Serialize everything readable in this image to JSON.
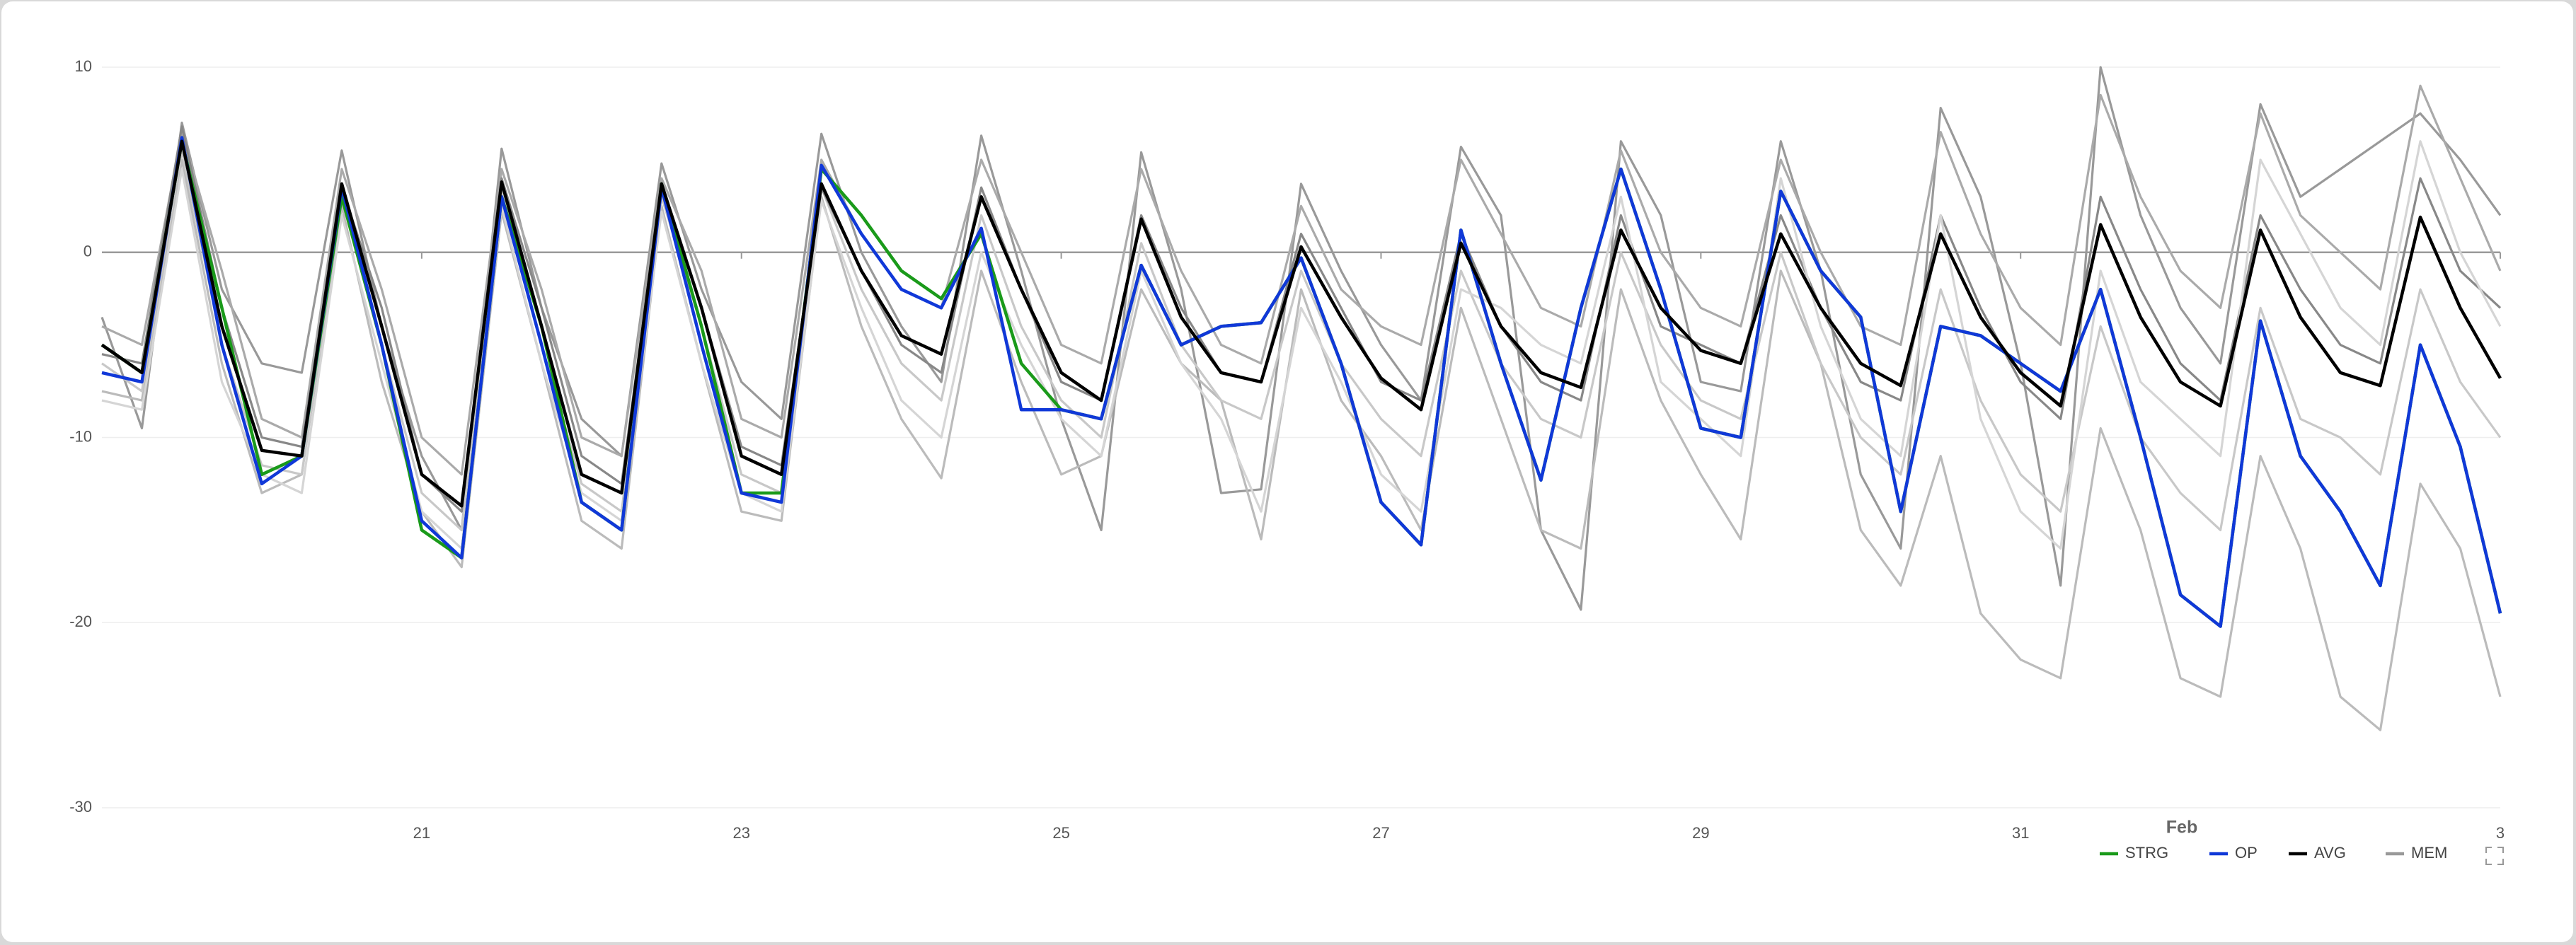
{
  "chart_data": {
    "type": "line",
    "x": [
      19,
      19.25,
      19.5,
      19.75,
      20,
      20.25,
      20.5,
      20.75,
      21,
      21.25,
      21.5,
      21.75,
      22,
      22.25,
      22.5,
      22.75,
      23,
      23.25,
      23.5,
      23.75,
      24,
      24.25,
      24.5,
      24.75,
      25,
      25.25,
      25.5,
      25.75,
      26,
      26.25,
      26.5,
      26.75,
      27,
      27.25,
      27.5,
      27.75,
      28,
      28.25,
      28.5,
      28.75,
      29,
      29.25,
      29.5,
      29.75,
      30,
      30.25,
      30.5,
      30.75,
      31,
      31.25,
      31.5,
      31.75,
      32,
      32.25,
      32.5,
      32.75,
      33,
      33.25,
      33.5,
      33.75,
      34
    ],
    "xlim": [
      19,
      34
    ],
    "xticks": [
      21,
      23,
      25,
      27,
      29,
      31,
      {
        "value": 34,
        "label": "3"
      }
    ],
    "x_annotation": "Feb",
    "ylim": [
      -30,
      10
    ],
    "yticks": [
      -30,
      -20,
      -10,
      0,
      10
    ],
    "grid": true,
    "legend": "bottom-right",
    "series": [
      {
        "name": "STRG",
        "color": "#1a9a1a",
        "values": [
          -5,
          -6.5,
          6,
          -3,
          -12,
          -11,
          3,
          -5,
          -15,
          -16.5,
          3,
          -4,
          -13.5,
          -15,
          3.7,
          -4,
          -13,
          -13,
          4.5,
          2,
          -1,
          -2.5,
          1,
          -6,
          -8.5,
          -9,
          -0.7,
          -5,
          -4,
          -3.8,
          -0.3,
          -6,
          -13.5,
          -15.8,
          1.2,
          -6,
          -12.3,
          -3,
          4.5,
          -2,
          -9.5,
          -10,
          3.3,
          -1,
          -3.5,
          -14,
          -4,
          -4.5,
          -6,
          -7.5,
          -2,
          -10,
          -18.5,
          -20.2,
          -3.7,
          -11,
          -14,
          -18,
          -5,
          -10.5,
          -19.5
        ]
      },
      {
        "name": "OP",
        "color": "#1038d8",
        "values": [
          -6.5,
          -7,
          6.2,
          -5,
          -12.5,
          -11,
          3.5,
          -5,
          -14.5,
          -16.5,
          3,
          -5,
          -13.5,
          -15,
          3.5,
          -5,
          -13,
          -13.5,
          4.7,
          1,
          -2,
          -3,
          1.3,
          -8.5,
          -8.5,
          -9,
          -0.7,
          -5,
          -4,
          -3.8,
          -0.3,
          -6,
          -13.5,
          -15.8,
          1.2,
          -6,
          -12.3,
          -3,
          4.5,
          -2,
          -9.5,
          -10,
          3.3,
          -1,
          -3.5,
          -14,
          -4,
          -4.5,
          -6,
          -7.5,
          -2,
          -10,
          -18.5,
          -20.2,
          -3.7,
          -11,
          -14,
          -18,
          -5,
          -10.5,
          -19.5
        ]
      },
      {
        "name": "AVG",
        "color": "#000000",
        "values": [
          -5,
          -6.5,
          6,
          -4,
          -10.7,
          -11,
          3.7,
          -4,
          -12,
          -13.7,
          3.8,
          -4,
          -12,
          -13,
          3.7,
          -3,
          -11,
          -12,
          3.7,
          -1,
          -4.5,
          -5.5,
          3,
          -2,
          -6.5,
          -8,
          1.8,
          -3.5,
          -6.5,
          -7,
          0.3,
          -3.5,
          -6.8,
          -8.5,
          0.5,
          -4,
          -6.5,
          -7.3,
          1.2,
          -3,
          -5.3,
          -6,
          1,
          -3,
          -6,
          -7.2,
          1,
          -3.5,
          -6.5,
          -8.3,
          1.5,
          -3.5,
          -7,
          -8.3,
          1.2,
          -3.5,
          -6.5,
          -7.2,
          1.9,
          -3,
          -6.8
        ]
      },
      {
        "name": "MEM",
        "color": "#999999",
        "members": [
          {
            "color": "#999999",
            "values": [
              -3.5,
              -9.5,
              7,
              -2,
              -6,
              -6.5,
              5.5,
              -4,
              -11,
              -15,
              5.6,
              -3,
              -9,
              -11,
              4.8,
              -2,
              -7,
              -9,
              6.4,
              0,
              -4,
              -7,
              6.3,
              -1,
              -9,
              -15,
              5.4,
              -2,
              -13,
              -12.8,
              3.7,
              -1,
              -5,
              -8,
              5.7,
              2,
              -15,
              -19.3,
              6,
              2,
              -7,
              -7.5,
              6,
              -1,
              -12,
              -16,
              7.8,
              3,
              -6,
              -18,
              10,
              2,
              -3,
              -6,
              8,
              3,
              4.5,
              6,
              7.5,
              5,
              2
            ]
          },
          {
            "color": "#bbbbbb",
            "values": [
              -7.5,
              -8,
              5,
              -6,
              -13,
              -12,
              2.5,
              -7,
              -14,
              -17,
              2.2,
              -6,
              -14.5,
              -16,
              2.5,
              -6,
              -14,
              -14.5,
              3,
              -4,
              -9,
              -12.2,
              -1,
              -7,
              -12,
              -11,
              -2,
              -6,
              -8,
              -15.5,
              -2,
              -8,
              -11,
              -15,
              -3,
              -9,
              -15,
              -16,
              -2,
              -8,
              -12,
              -15.5,
              -1,
              -6,
              -15,
              -18,
              -11,
              -19.5,
              -22,
              -23,
              -9.5,
              -15,
              -23,
              -24,
              -11,
              -16,
              -24,
              -25.8,
              -12.5,
              -16,
              -24
            ]
          },
          {
            "color": "#aaaaaa",
            "values": [
              -4,
              -5,
              6.5,
              -1,
              -9,
              -10,
              4.5,
              -2,
              -10,
              -12,
              4.5,
              -2,
              -10,
              -11,
              4,
              -1,
              -9,
              -10,
              5,
              1,
              -2,
              -3,
              5,
              0,
              -5,
              -6,
              4.5,
              -1,
              -5,
              -6,
              2.5,
              -2,
              -4,
              -5,
              5,
              1,
              -3,
              -4,
              5.5,
              0,
              -3,
              -4,
              5,
              0,
              -4,
              -5,
              6.5,
              1,
              -3,
              -5,
              8.5,
              3,
              -1,
              -3,
              7.5,
              2,
              0,
              -2,
              9,
              4,
              -1
            ]
          },
          {
            "color": "#c8c8c8",
            "values": [
              -6,
              -7.5,
              5.5,
              -5,
              -11.5,
              -12,
              3,
              -5,
              -13,
              -15,
              3.3,
              -5,
              -12.5,
              -14,
              3,
              -4,
              -12,
              -13,
              3.5,
              -2,
              -6,
              -8,
              2,
              -4,
              -8,
              -10,
              0.5,
              -5,
              -8,
              -9,
              -1,
              -6,
              -9,
              -11,
              -1,
              -6,
              -9,
              -10,
              0,
              -5,
              -8,
              -9,
              0,
              -6,
              -10,
              -12,
              -2,
              -8,
              -12,
              -14,
              -4,
              -10,
              -13,
              -15,
              -3,
              -9,
              -10,
              -12,
              -2,
              -7,
              -10
            ]
          },
          {
            "color": "#888888",
            "values": [
              -5.5,
              -6,
              6.8,
              -3,
              -10,
              -10.5,
              3.5,
              -3,
              -12,
              -14,
              4,
              -3,
              -11,
              -12.5,
              3.7,
              -3,
              -10.5,
              -11.5,
              3.5,
              -1,
              -5,
              -6.5,
              3.5,
              -2,
              -7,
              -8,
              2,
              -3,
              -6.5,
              -7,
              1,
              -3,
              -7,
              -8,
              1,
              -4,
              -7,
              -8,
              2,
              -4,
              -5,
              -6,
              2,
              -3,
              -7,
              -8,
              2,
              -3,
              -7,
              -9,
              3,
              -2,
              -6,
              -8,
              2,
              -2,
              -5,
              -6,
              4,
              -1,
              -3
            ]
          },
          {
            "color": "#d5d5d5",
            "values": [
              -8,
              -8.5,
              4.5,
              -7,
              -12,
              -13,
              2,
              -6,
              -14,
              -16,
              2.5,
              -6,
              -13,
              -14.5,
              2.2,
              -6,
              -13,
              -14,
              2.8,
              -3,
              -8,
              -10,
              0,
              -5,
              -9,
              -11,
              -1,
              -6,
              -9,
              -14,
              -3,
              -7,
              -12,
              -14,
              -2,
              -3,
              -5,
              -6,
              3,
              -7,
              -9,
              -11,
              4,
              -4,
              -9,
              -11,
              2,
              -9,
              -14,
              -16,
              -1,
              -7,
              -9,
              -11,
              5,
              1,
              -3,
              -5,
              6,
              0,
              -4
            ]
          }
        ]
      }
    ]
  }
}
